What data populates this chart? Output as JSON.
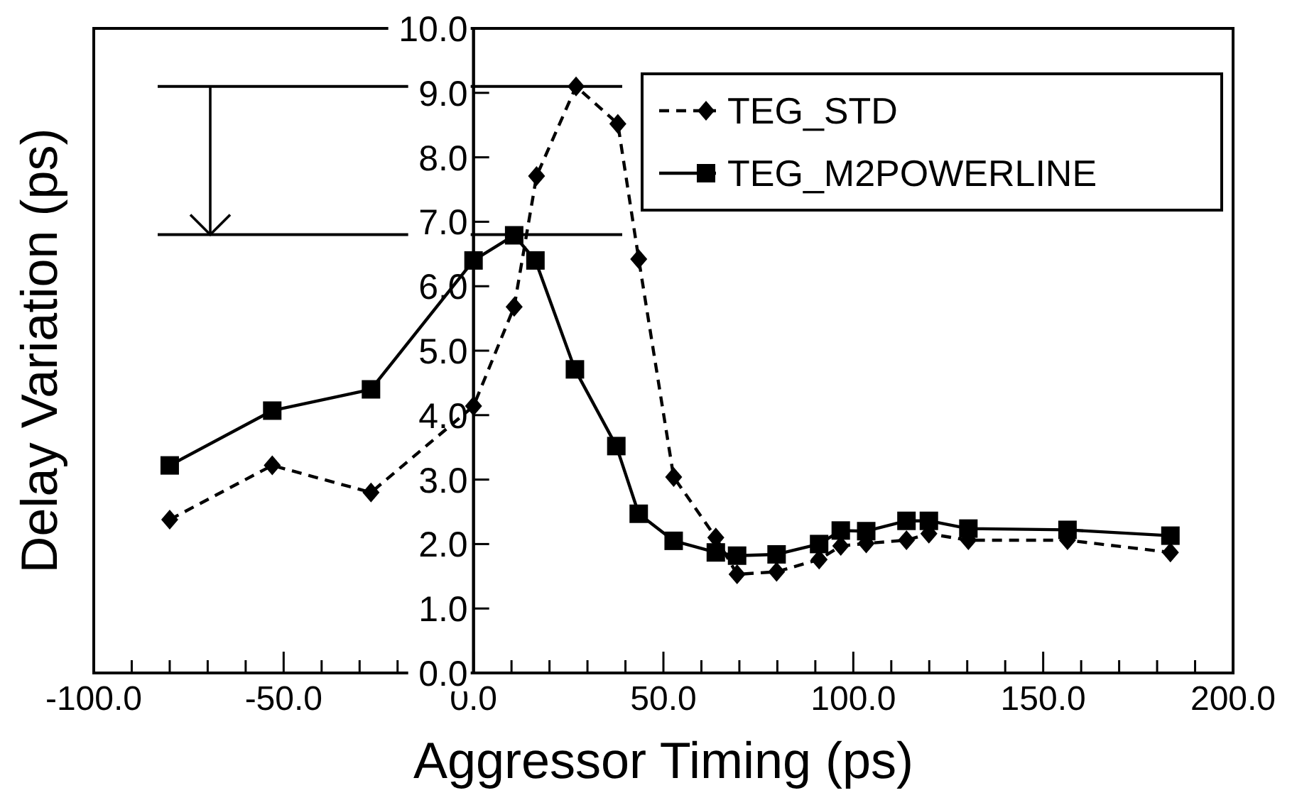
{
  "chart_data": {
    "type": "line",
    "xlabel": "Aggressor Timing (ps)",
    "ylabel": "Delay Variation (ps)",
    "xlim": [
      -100,
      200
    ],
    "ylim": [
      0,
      10
    ],
    "xticks": [
      {
        "value": -100,
        "label": "-100.0"
      },
      {
        "value": -90,
        "label": null
      },
      {
        "value": -80,
        "label": null
      },
      {
        "value": -70,
        "label": null
      },
      {
        "value": -60,
        "label": null
      },
      {
        "value": -50,
        "label": "-50.0"
      },
      {
        "value": -40,
        "label": null
      },
      {
        "value": -30,
        "label": null
      },
      {
        "value": -20,
        "label": null
      },
      {
        "value": -10,
        "label": null
      },
      {
        "value": 0,
        "label": "0.0"
      },
      {
        "value": 10,
        "label": null
      },
      {
        "value": 20,
        "label": null
      },
      {
        "value": 30,
        "label": null
      },
      {
        "value": 40,
        "label": null
      },
      {
        "value": 50,
        "label": "50.0"
      },
      {
        "value": 60,
        "label": null
      },
      {
        "value": 70,
        "label": null
      },
      {
        "value": 80,
        "label": null
      },
      {
        "value": 90,
        "label": null
      },
      {
        "value": 100,
        "label": "100.0"
      },
      {
        "value": 110,
        "label": null
      },
      {
        "value": 120,
        "label": null
      },
      {
        "value": 130,
        "label": null
      },
      {
        "value": 140,
        "label": null
      },
      {
        "value": 150,
        "label": "150.0"
      },
      {
        "value": 160,
        "label": null
      },
      {
        "value": 170,
        "label": null
      },
      {
        "value": 180,
        "label": null
      },
      {
        "value": 190,
        "label": null
      },
      {
        "value": 200,
        "label": "200.0"
      }
    ],
    "yticks": [
      {
        "value": 0,
        "label": "0.0"
      },
      {
        "value": 1,
        "label": "1.0"
      },
      {
        "value": 2,
        "label": "2.0"
      },
      {
        "value": 3,
        "label": "3.0"
      },
      {
        "value": 4,
        "label": "4.0"
      },
      {
        "value": 5,
        "label": "5.0"
      },
      {
        "value": 6,
        "label": "6.0"
      },
      {
        "value": 7,
        "label": "7.0"
      },
      {
        "value": 8,
        "label": "8.0"
      },
      {
        "value": 9,
        "label": "9.0"
      },
      {
        "value": 10,
        "label": "10.0"
      }
    ],
    "grid": false,
    "legend": "top right",
    "ref_lines": [
      {
        "axis": "y",
        "value": 9.1
      },
      {
        "axis": "y",
        "value": 6.8
      }
    ],
    "series": [
      {
        "name": "TEG_STD",
        "color": "#000000",
        "marker": "diamond",
        "line_style": "dashed",
        "x": [
          -80,
          -53,
          -27,
          0,
          10.7,
          16.6,
          27,
          38,
          43.5,
          52.7,
          63.8,
          69.4,
          79.8,
          91,
          96.7,
          103.4,
          114,
          119.9,
          130.3,
          156.4,
          183.5
        ],
        "values": [
          2.38,
          3.22,
          2.8,
          4.14,
          5.68,
          7.71,
          9.1,
          8.52,
          6.42,
          3.04,
          2.1,
          1.53,
          1.57,
          1.76,
          1.97,
          2.01,
          2.06,
          2.16,
          2.06,
          2.06,
          1.87
        ]
      },
      {
        "name": "TEG_M2POWERLINE",
        "color": "#000000",
        "marker": "square",
        "line_style": "solid",
        "x": [
          -80,
          -53,
          -27,
          0,
          10.7,
          16.3,
          26.7,
          37.6,
          43.5,
          52.7,
          63.8,
          69.4,
          79.8,
          91,
          96.7,
          103.4,
          114,
          119.9,
          130.3,
          156.4,
          183.5
        ],
        "values": [
          3.22,
          4.07,
          4.4,
          6.4,
          6.79,
          6.4,
          4.71,
          3.52,
          2.47,
          2.05,
          1.87,
          1.82,
          1.84,
          2.0,
          2.21,
          2.2,
          2.36,
          2.36,
          2.24,
          2.22,
          2.13
        ]
      }
    ]
  }
}
